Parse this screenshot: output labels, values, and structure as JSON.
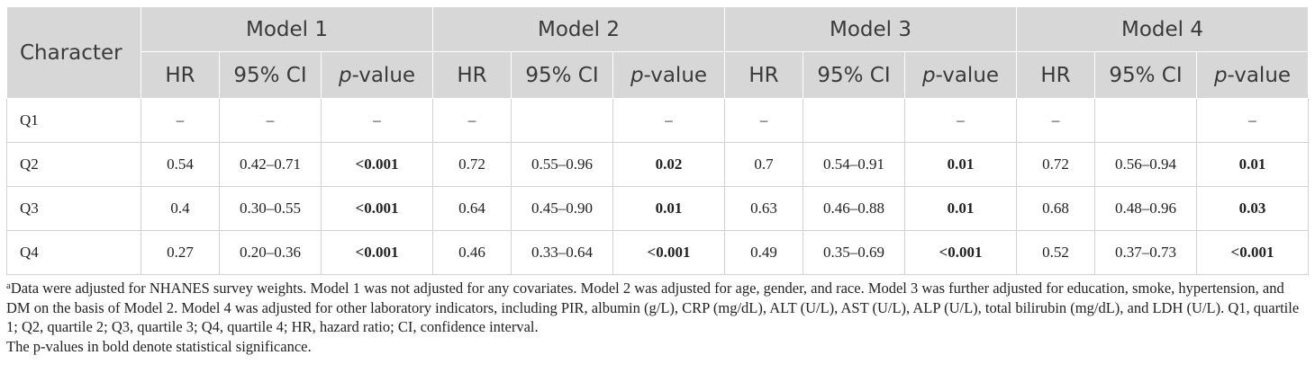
{
  "table": {
    "row_header": "Character",
    "models": [
      "Model 1",
      "Model 2",
      "Model 3",
      "Model 4"
    ],
    "subheaders": {
      "hr": "HR",
      "ci": "95% CI",
      "p_italic": "p",
      "p_rest": "-value"
    },
    "rows": [
      {
        "label": "Q1",
        "cells": [
          {
            "v": "–"
          },
          {
            "v": "–"
          },
          {
            "v": "–"
          },
          {
            "v": "–"
          },
          {
            "v": ""
          },
          {
            "v": "–"
          },
          {
            "v": "–"
          },
          {
            "v": ""
          },
          {
            "v": "–"
          },
          {
            "v": "–"
          },
          {
            "v": ""
          },
          {
            "v": "–"
          }
        ]
      },
      {
        "label": "Q2",
        "cells": [
          {
            "v": "0.54"
          },
          {
            "v": "0.42–0.71"
          },
          {
            "v": "<0.001",
            "bold": true
          },
          {
            "v": "0.72"
          },
          {
            "v": "0.55–0.96"
          },
          {
            "v": "0.02",
            "bold": true
          },
          {
            "v": "0.7"
          },
          {
            "v": "0.54–0.91"
          },
          {
            "v": "0.01",
            "bold": true
          },
          {
            "v": "0.72"
          },
          {
            "v": "0.56–0.94"
          },
          {
            "v": "0.01",
            "bold": true
          }
        ]
      },
      {
        "label": "Q3",
        "cells": [
          {
            "v": "0.4"
          },
          {
            "v": "0.30–0.55"
          },
          {
            "v": "<0.001",
            "bold": true
          },
          {
            "v": "0.64"
          },
          {
            "v": "0.45–0.90"
          },
          {
            "v": "0.01",
            "bold": true
          },
          {
            "v": "0.63"
          },
          {
            "v": "0.46–0.88"
          },
          {
            "v": "0.01",
            "bold": true
          },
          {
            "v": "0.68"
          },
          {
            "v": "0.48–0.96"
          },
          {
            "v": "0.03",
            "bold": true
          }
        ]
      },
      {
        "label": "Q4",
        "cells": [
          {
            "v": "0.27"
          },
          {
            "v": "0.20–0.36"
          },
          {
            "v": "<0.001",
            "bold": true
          },
          {
            "v": "0.46"
          },
          {
            "v": "0.33–0.64"
          },
          {
            "v": "<0.001",
            "bold": true
          },
          {
            "v": "0.49"
          },
          {
            "v": "0.35–0.69"
          },
          {
            "v": "<0.001",
            "bold": true
          },
          {
            "v": "0.52"
          },
          {
            "v": "0.37–0.73"
          },
          {
            "v": "<0.001",
            "bold": true
          }
        ]
      }
    ]
  },
  "footnote": {
    "sup": "a",
    "text": "Data were adjusted for NHANES survey weights. Model 1 was not adjusted for any covariates. Model 2 was adjusted for age, gender, and race. Model 3 was further adjusted for education, smoke, hypertension, and DM on the basis of Model 2. Model 4 was adjusted for other laboratory indicators, including PIR, albumin (g/L), CRP (mg/dL), ALT (U/L), AST (U/L), ALP (U/L), total bilirubin (mg/dL), and LDH (U/L). Q1, quartile 1; Q2, quartile 2; Q3, quartile 3; Q4, quartile 4; HR, hazard ratio; CI, confidence interval.",
    "note2": "The p-values in bold denote statistical significance."
  }
}
